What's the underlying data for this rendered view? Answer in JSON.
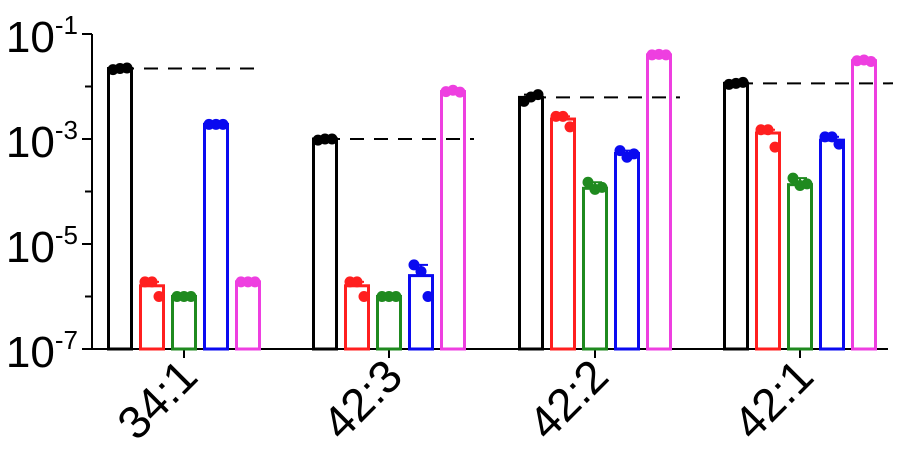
{
  "chart_data": {
    "type": "bar",
    "yscale": "log",
    "ylim": [
      1e-07,
      0.1
    ],
    "y_ticks": [
      {
        "base": "10",
        "exp": "-1"
      },
      {
        "base": "10",
        "exp": "-3"
      },
      {
        "base": "10",
        "exp": "-5"
      },
      {
        "base": "10",
        "exp": "-7"
      }
    ],
    "categories": [
      "34:1",
      "42:3",
      "42:2",
      "42:1"
    ],
    "series": [
      {
        "color": "#000000",
        "values": [
          0.022,
          0.001,
          0.0062,
          0.0115
        ],
        "points": [
          [
            0.021,
            0.022,
            0.0225
          ],
          [
            0.00095,
            0.001,
            0.001
          ],
          [
            0.0052,
            0.0063,
            0.007
          ],
          [
            0.011,
            0.0115,
            0.012
          ]
        ]
      },
      {
        "color": "#ff1f1f",
        "values": [
          1.6e-06,
          1.6e-06,
          0.0024,
          0.0013
        ],
        "points": [
          [
            1.9e-06,
            1.9e-06,
            1e-06
          ],
          [
            1.9e-06,
            1.9e-06,
            1e-06
          ],
          [
            0.0027,
            0.0027,
            0.0017
          ],
          [
            0.0015,
            0.0015,
            0.0007
          ]
        ]
      },
      {
        "color": "#1f8a1f",
        "values": [
          1e-06,
          1e-06,
          0.000115,
          0.000135
        ],
        "points": [
          [
            1e-06,
            1e-06,
            1e-06
          ],
          [
            1e-06,
            1e-06,
            1e-06
          ],
          [
            0.00015,
            0.00011,
            0.00012
          ],
          [
            0.00018,
            0.00013,
            0.00014
          ]
        ]
      },
      {
        "color": "#0a0af0",
        "values": [
          0.0019,
          2.5e-06,
          0.00053,
          0.00095
        ],
        "points": [
          [
            0.0019,
            0.0019,
            0.0019
          ],
          [
            4e-06,
            3e-06,
            1e-06
          ],
          [
            0.0006,
            0.00045,
            0.00052
          ],
          [
            0.0011,
            0.0011,
            0.0008
          ]
        ]
      },
      {
        "color": "#ee3fe0",
        "values": [
          1.9e-06,
          0.008,
          0.04,
          0.031
        ],
        "points": [
          [
            1.9e-06,
            1.9e-06,
            1.9e-06
          ],
          [
            0.008,
            0.0085,
            0.0078
          ],
          [
            0.04,
            0.041,
            0.04
          ],
          [
            0.031,
            0.032,
            0.03
          ]
        ]
      }
    ],
    "reference_lines": [
      0.022,
      0.001,
      0.0062,
      0.0115
    ],
    "grid": false,
    "legend": "none"
  }
}
